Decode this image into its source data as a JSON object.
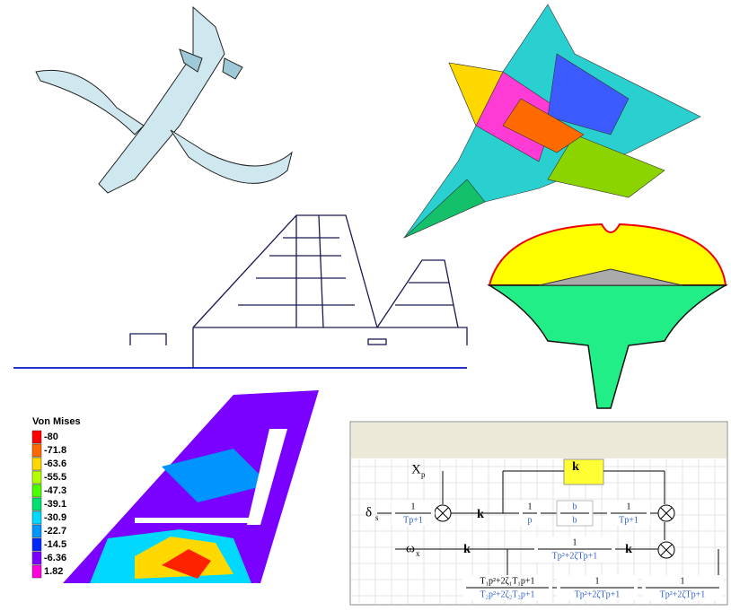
{
  "legend": {
    "title": "Von Mises",
    "entries": [
      {
        "label": "-80",
        "color": "#ff0000"
      },
      {
        "label": "-71.8",
        "color": "#ff6a00"
      },
      {
        "label": "-63.6",
        "color": "#ffd800"
      },
      {
        "label": "-55.5",
        "color": "#b6ff00"
      },
      {
        "label": "-47.3",
        "color": "#4cff00"
      },
      {
        "label": "-39.1",
        "color": "#00e070"
      },
      {
        "label": "-30.9",
        "color": "#00d8ff"
      },
      {
        "label": "-22.7",
        "color": "#0094ff"
      },
      {
        "label": "-14.5",
        "color": "#0026ff"
      },
      {
        "label": "-6.36",
        "color": "#7a00ff"
      },
      {
        "label": "1.82",
        "color": "#ff00dc"
      }
    ]
  },
  "diagram": {
    "signals": [
      {
        "text": "X",
        "sub": "p"
      },
      {
        "text": "ω",
        "sub": "x"
      },
      {
        "text": "δ",
        "sub": "s"
      }
    ],
    "gains": [
      "k",
      "k",
      "k",
      "k"
    ],
    "blocks": [
      {
        "num": "1",
        "den": "Tp+1"
      },
      {
        "num": "1",
        "den": "p"
      },
      {
        "num": "b",
        "den": "b"
      },
      {
        "num": "1",
        "den": "Tp+1"
      },
      {
        "num": "1",
        "den": "Tp²+2ζTp+1"
      },
      {
        "num": "T₁p²+2ζ₁T₁p+1",
        "den": "T₂p²+2ζ₂T₂p+1"
      },
      {
        "num": "1",
        "den": "Tp²+2ζTp+1"
      },
      {
        "num": "1",
        "den": "Tp²+2ζTp+1"
      }
    ]
  }
}
